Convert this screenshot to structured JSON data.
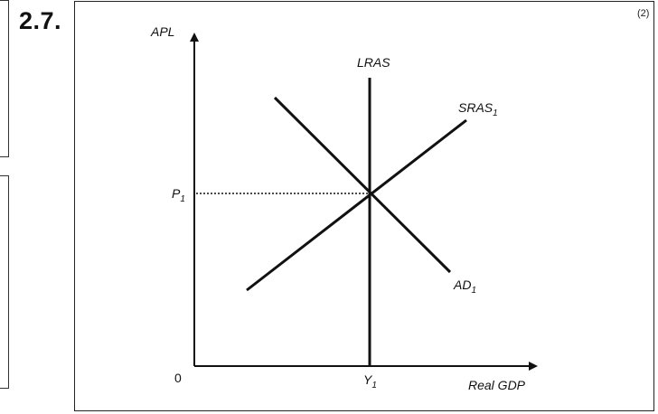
{
  "question": {
    "number": "2.7.",
    "marks": "(2)"
  },
  "diagram": {
    "y_axis_label": "APL",
    "x_axis_label": "Real GDP",
    "origin_label": "0",
    "price_label": "P",
    "price_sub": "1",
    "output_label": "Y",
    "output_sub": "1",
    "curves": {
      "lras": "LRAS",
      "sras": "SRAS",
      "sras_sub": "1",
      "ad": "AD",
      "ad_sub": "1"
    },
    "colors": {
      "line": "#111111",
      "frame": "#222222"
    }
  }
}
